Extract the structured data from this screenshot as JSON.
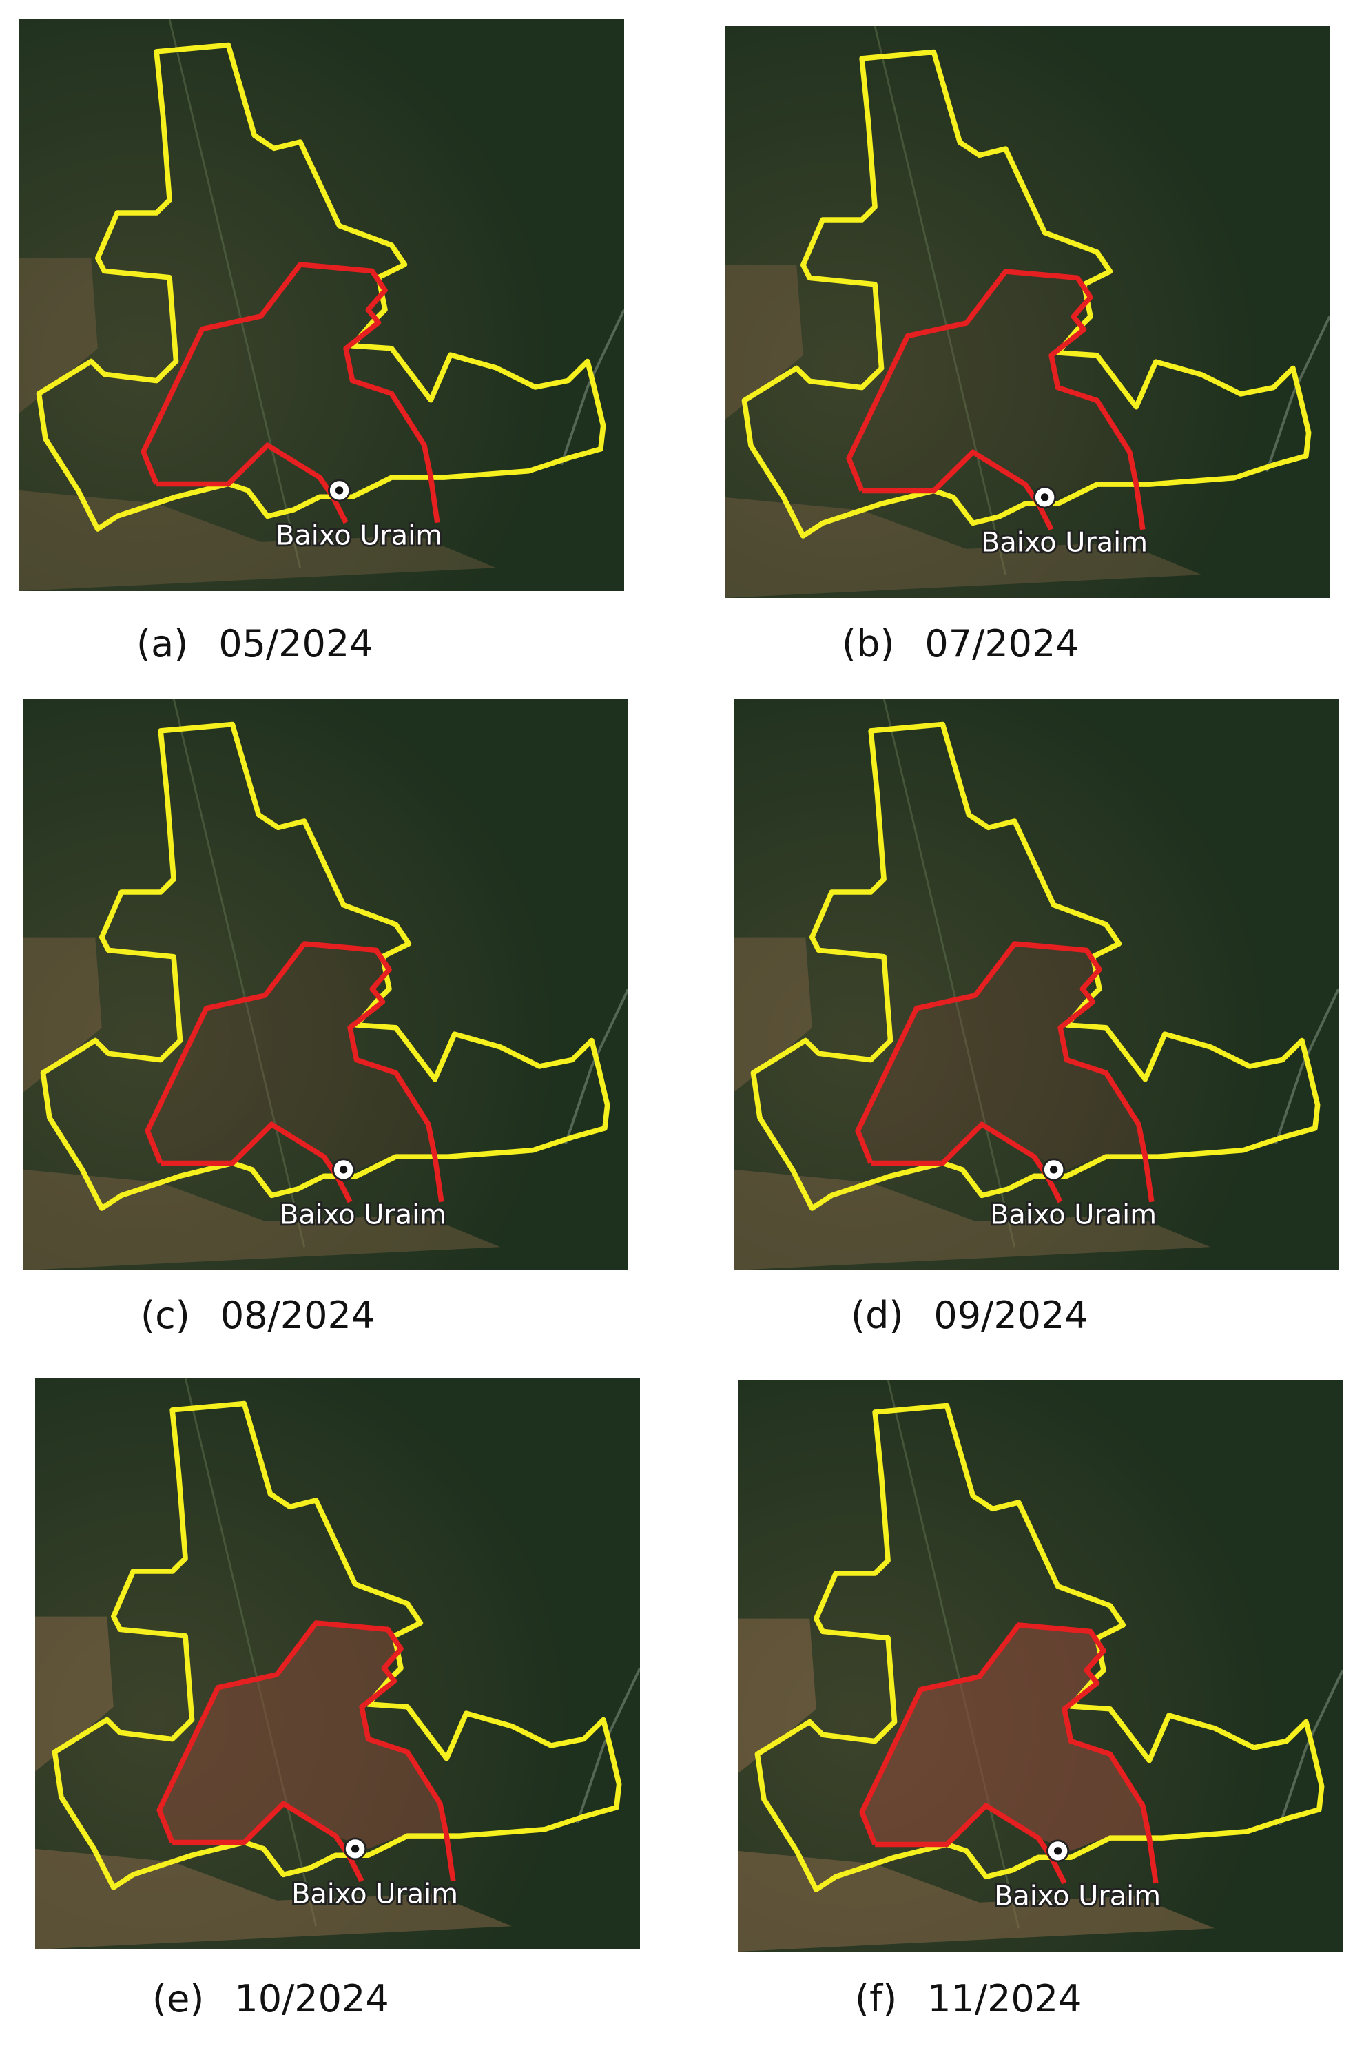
{
  "figure": {
    "panels": [
      {
        "letter": "(a)",
        "date": "05/2024",
        "place": "Baixo Uraim"
      },
      {
        "letter": "(b)",
        "date": "07/2024",
        "place": "Baixo Uraim"
      },
      {
        "letter": "(c)",
        "date": "08/2024",
        "place": "Baixo Uraim"
      },
      {
        "letter": "(d)",
        "date": "09/2024",
        "place": "Baixo Uraim"
      },
      {
        "letter": "(e)",
        "date": "10/2024",
        "place": "Baixo Uraim"
      },
      {
        "letter": "(f)",
        "date": "11/2024",
        "place": "Baixo Uraim"
      }
    ]
  }
}
